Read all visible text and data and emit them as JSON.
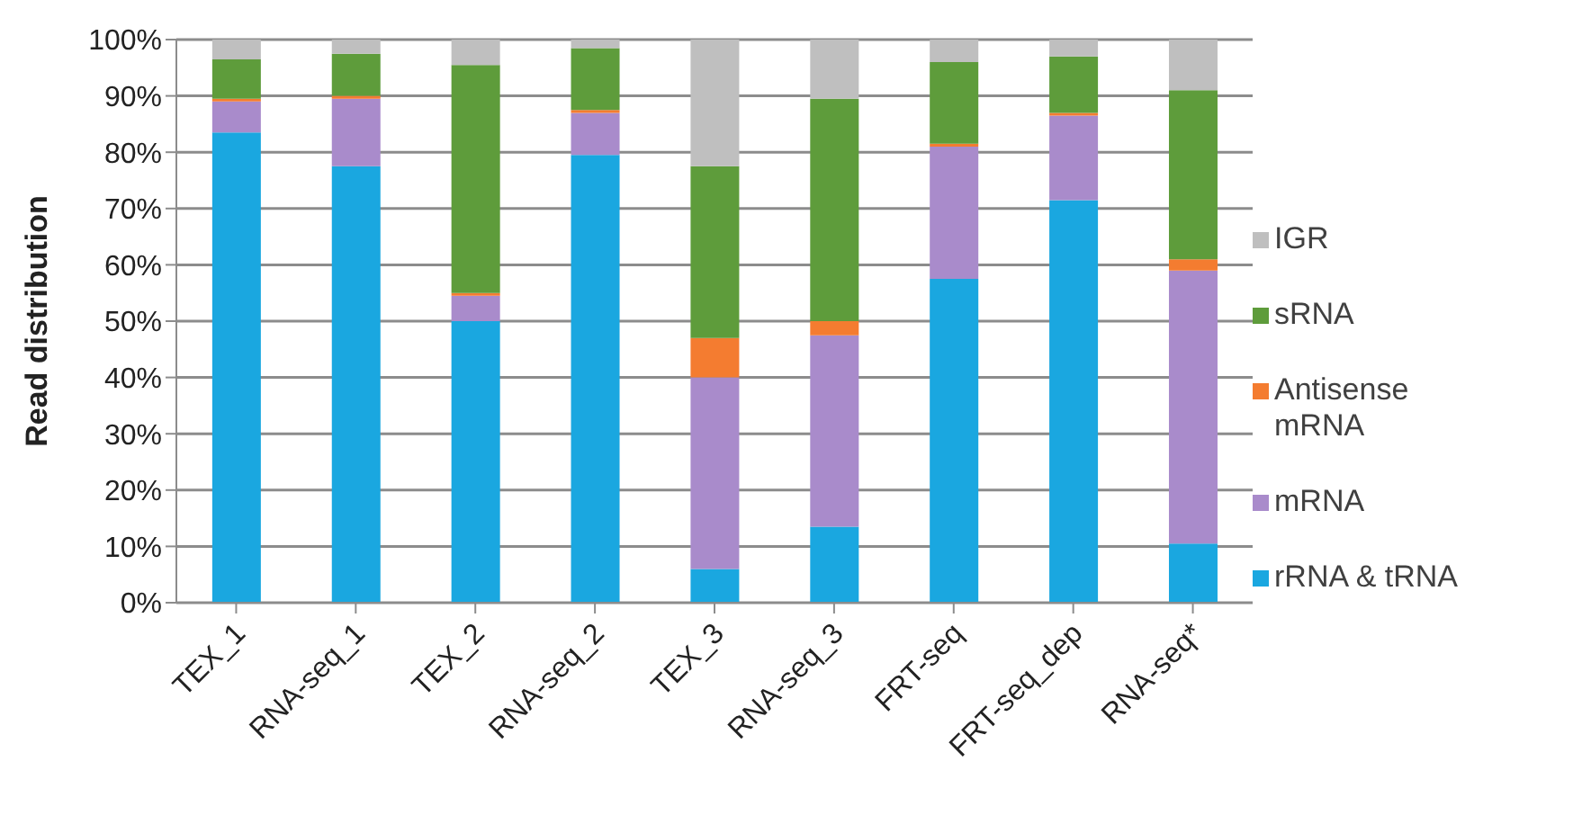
{
  "chart_data": {
    "type": "bar",
    "stacked": true,
    "ylabel": "Read distribution",
    "categories": [
      "TEX_1",
      "RNA-seq_1",
      "TEX_2",
      "RNA-seq_2",
      "TEX_3",
      "RNA-seq_3",
      "FRT-seq",
      "FRT-seq_dep",
      "RNA-seq*"
    ],
    "series": [
      {
        "name": "rRNA & tRNA",
        "color": "#1aa7e0",
        "values": [
          83.5,
          77.5,
          50,
          79.5,
          6,
          13.5,
          57.5,
          71.5,
          10.5
        ]
      },
      {
        "name": "mRNA",
        "color": "#a98bcb",
        "values": [
          5.5,
          12,
          4.5,
          7.5,
          34,
          34,
          23.5,
          15,
          48.5
        ]
      },
      {
        "name": "Antisense mRNA",
        "color": "#f47c30",
        "values": [
          0.5,
          0.5,
          0.5,
          0.5,
          7,
          2.5,
          0.5,
          0.5,
          2
        ]
      },
      {
        "name": "sRNA",
        "color": "#5e9c3b",
        "values": [
          7,
          7.5,
          40.5,
          11,
          30.5,
          39.5,
          14.5,
          10,
          30
        ]
      },
      {
        "name": "IGR",
        "color": "#bfbfbf",
        "values": [
          3.5,
          2.5,
          4.5,
          1.5,
          22.5,
          10.5,
          4,
          3,
          9
        ]
      }
    ],
    "ylim": [
      0,
      100
    ],
    "yticks": [
      {
        "value": 0,
        "label": "0%"
      },
      {
        "value": 10,
        "label": "10%"
      },
      {
        "value": 20,
        "label": "20%"
      },
      {
        "value": 30,
        "label": "30%"
      },
      {
        "value": 40,
        "label": "40%"
      },
      {
        "value": 50,
        "label": "50%"
      },
      {
        "value": 60,
        "label": "60%"
      },
      {
        "value": 70,
        "label": "70%"
      },
      {
        "value": 80,
        "label": "80%"
      },
      {
        "value": 90,
        "label": "90%"
      },
      {
        "value": 100,
        "label": "100%"
      }
    ],
    "grid": "y",
    "legend": "right"
  }
}
